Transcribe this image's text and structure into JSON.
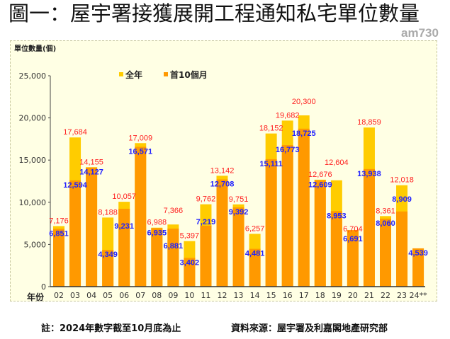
{
  "title": "圖一：屋宇署接獲展開工程通知私宅單位數量",
  "logo": "am730",
  "footer": {
    "note": "註：2024年數字截至10月底為止",
    "source": "資料來源：屋宇署及利嘉閣地產研究部"
  },
  "chart_data": {
    "type": "bar",
    "title": "",
    "ylabel": "單位數量(個)",
    "xlabel": "年份",
    "ylim": [
      0,
      25000
    ],
    "yticks": [
      "0",
      "5,000",
      "10,000",
      "15,000",
      "20,000",
      "25,000"
    ],
    "ytick_values": [
      0,
      5000,
      10000,
      15000,
      20000,
      25000
    ],
    "grid": false,
    "legend_placement": "top-center",
    "categories": [
      "02",
      "03",
      "04",
      "05",
      "06",
      "07",
      "08",
      "09",
      "10",
      "11",
      "12",
      "13",
      "14",
      "15",
      "16",
      "17",
      "18",
      "19",
      "20",
      "21",
      "22",
      "23",
      "24**"
    ],
    "series": [
      {
        "name": "全年",
        "color": "#ffcc00",
        "label_color": "#ff2020",
        "values": [
          7176,
          17684,
          14155,
          8188,
          10057,
          17009,
          6988,
          7366,
          5397,
          9762,
          13142,
          9751,
          6257,
          18152,
          19682,
          20300,
          12676,
          12604,
          6704,
          18859,
          8361,
          12018,
          null
        ],
        "labels": [
          "7,176",
          "17,684",
          "14,155",
          "8,188",
          "10,057",
          "17,009",
          "6,988",
          "7,366",
          "5,397",
          "9,762",
          "13,142",
          "9,751",
          "6,257",
          "18,152",
          "19,682",
          "20,300",
          "12,676",
          "12,604",
          "6,704",
          "18,859",
          "8,361",
          "12,018",
          null
        ]
      },
      {
        "name": "首10個月",
        "color": "#ff9900",
        "label_color": "#2020ff",
        "values": [
          6851,
          12594,
          14127,
          4349,
          9231,
          16571,
          6935,
          6881,
          3402,
          7219,
          12708,
          9392,
          4481,
          15111,
          16773,
          18725,
          12609,
          8953,
          6691,
          13938,
          8060,
          8909,
          4539
        ],
        "labels": [
          "6,851",
          "12,594",
          "14,127",
          "4,349",
          "9,231",
          "16,571",
          "6,935",
          "6,881",
          "3,402",
          "7,219",
          "12,708",
          "9,392",
          "4,481",
          "15,111",
          "16,773",
          "18,725",
          "12,609",
          "8,953",
          "6,691",
          "13,938",
          "8,060",
          "8,909",
          "4,539"
        ]
      }
    ]
  }
}
